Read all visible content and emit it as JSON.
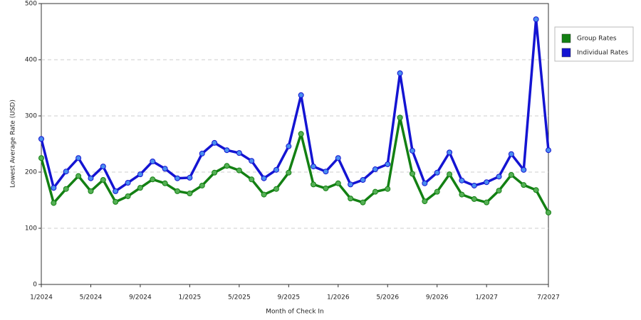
{
  "chart_data": {
    "type": "line",
    "xlabel": "Month of Check In",
    "ylabel": "Lowest Average Rate (USD)",
    "x": [
      0,
      1,
      2,
      3,
      4,
      5,
      6,
      7,
      8,
      9,
      10,
      11,
      12,
      13,
      14,
      15,
      16,
      17,
      18,
      19,
      20,
      21,
      22,
      23,
      24,
      25,
      26,
      27,
      28,
      29,
      30,
      31,
      32,
      33,
      34,
      35,
      36,
      37,
      38,
      39,
      40,
      41
    ],
    "xlim": [
      0,
      41
    ],
    "xticks": [
      {
        "value": 0,
        "label": "1/2024"
      },
      {
        "value": 4,
        "label": "5/2024"
      },
      {
        "value": 8,
        "label": "9/2024"
      },
      {
        "value": 12,
        "label": "1/2025"
      },
      {
        "value": 16,
        "label": "5/2025"
      },
      {
        "value": 20,
        "label": "9/2025"
      },
      {
        "value": 24,
        "label": "1/2026"
      },
      {
        "value": 28,
        "label": "5/2026"
      },
      {
        "value": 32,
        "label": "9/2026"
      },
      {
        "value": 36,
        "label": "1/2027"
      },
      {
        "value": 41,
        "label": "7/2027"
      }
    ],
    "ylim": [
      0,
      500
    ],
    "yticks": [
      0,
      100,
      200,
      300,
      400,
      500
    ],
    "grid": true,
    "legend": "right",
    "series": [
      {
        "name": "Group Rates",
        "color": "#138013",
        "marker_color": "#55b055",
        "values": [
          225,
          145,
          170,
          193,
          166,
          186,
          147,
          157,
          172,
          187,
          180,
          166,
          162,
          176,
          199,
          211,
          203,
          187,
          160,
          170,
          199,
          268,
          178,
          171,
          180,
          153,
          146,
          165,
          170,
          297,
          197,
          148,
          165,
          196,
          160,
          152,
          146,
          167,
          195,
          177,
          168,
          128
        ]
      },
      {
        "name": "Individual Rates",
        "color": "#1414d2",
        "marker_color": "#4a8ef0",
        "values": [
          259,
          172,
          201,
          225,
          189,
          210,
          166,
          181,
          196,
          219,
          206,
          189,
          190,
          233,
          252,
          239,
          234,
          220,
          189,
          204,
          246,
          337,
          210,
          201,
          225,
          178,
          186,
          205,
          214,
          376,
          238,
          180,
          199,
          235,
          185,
          176,
          182,
          192,
          232,
          204,
          472,
          239
        ]
      }
    ]
  }
}
